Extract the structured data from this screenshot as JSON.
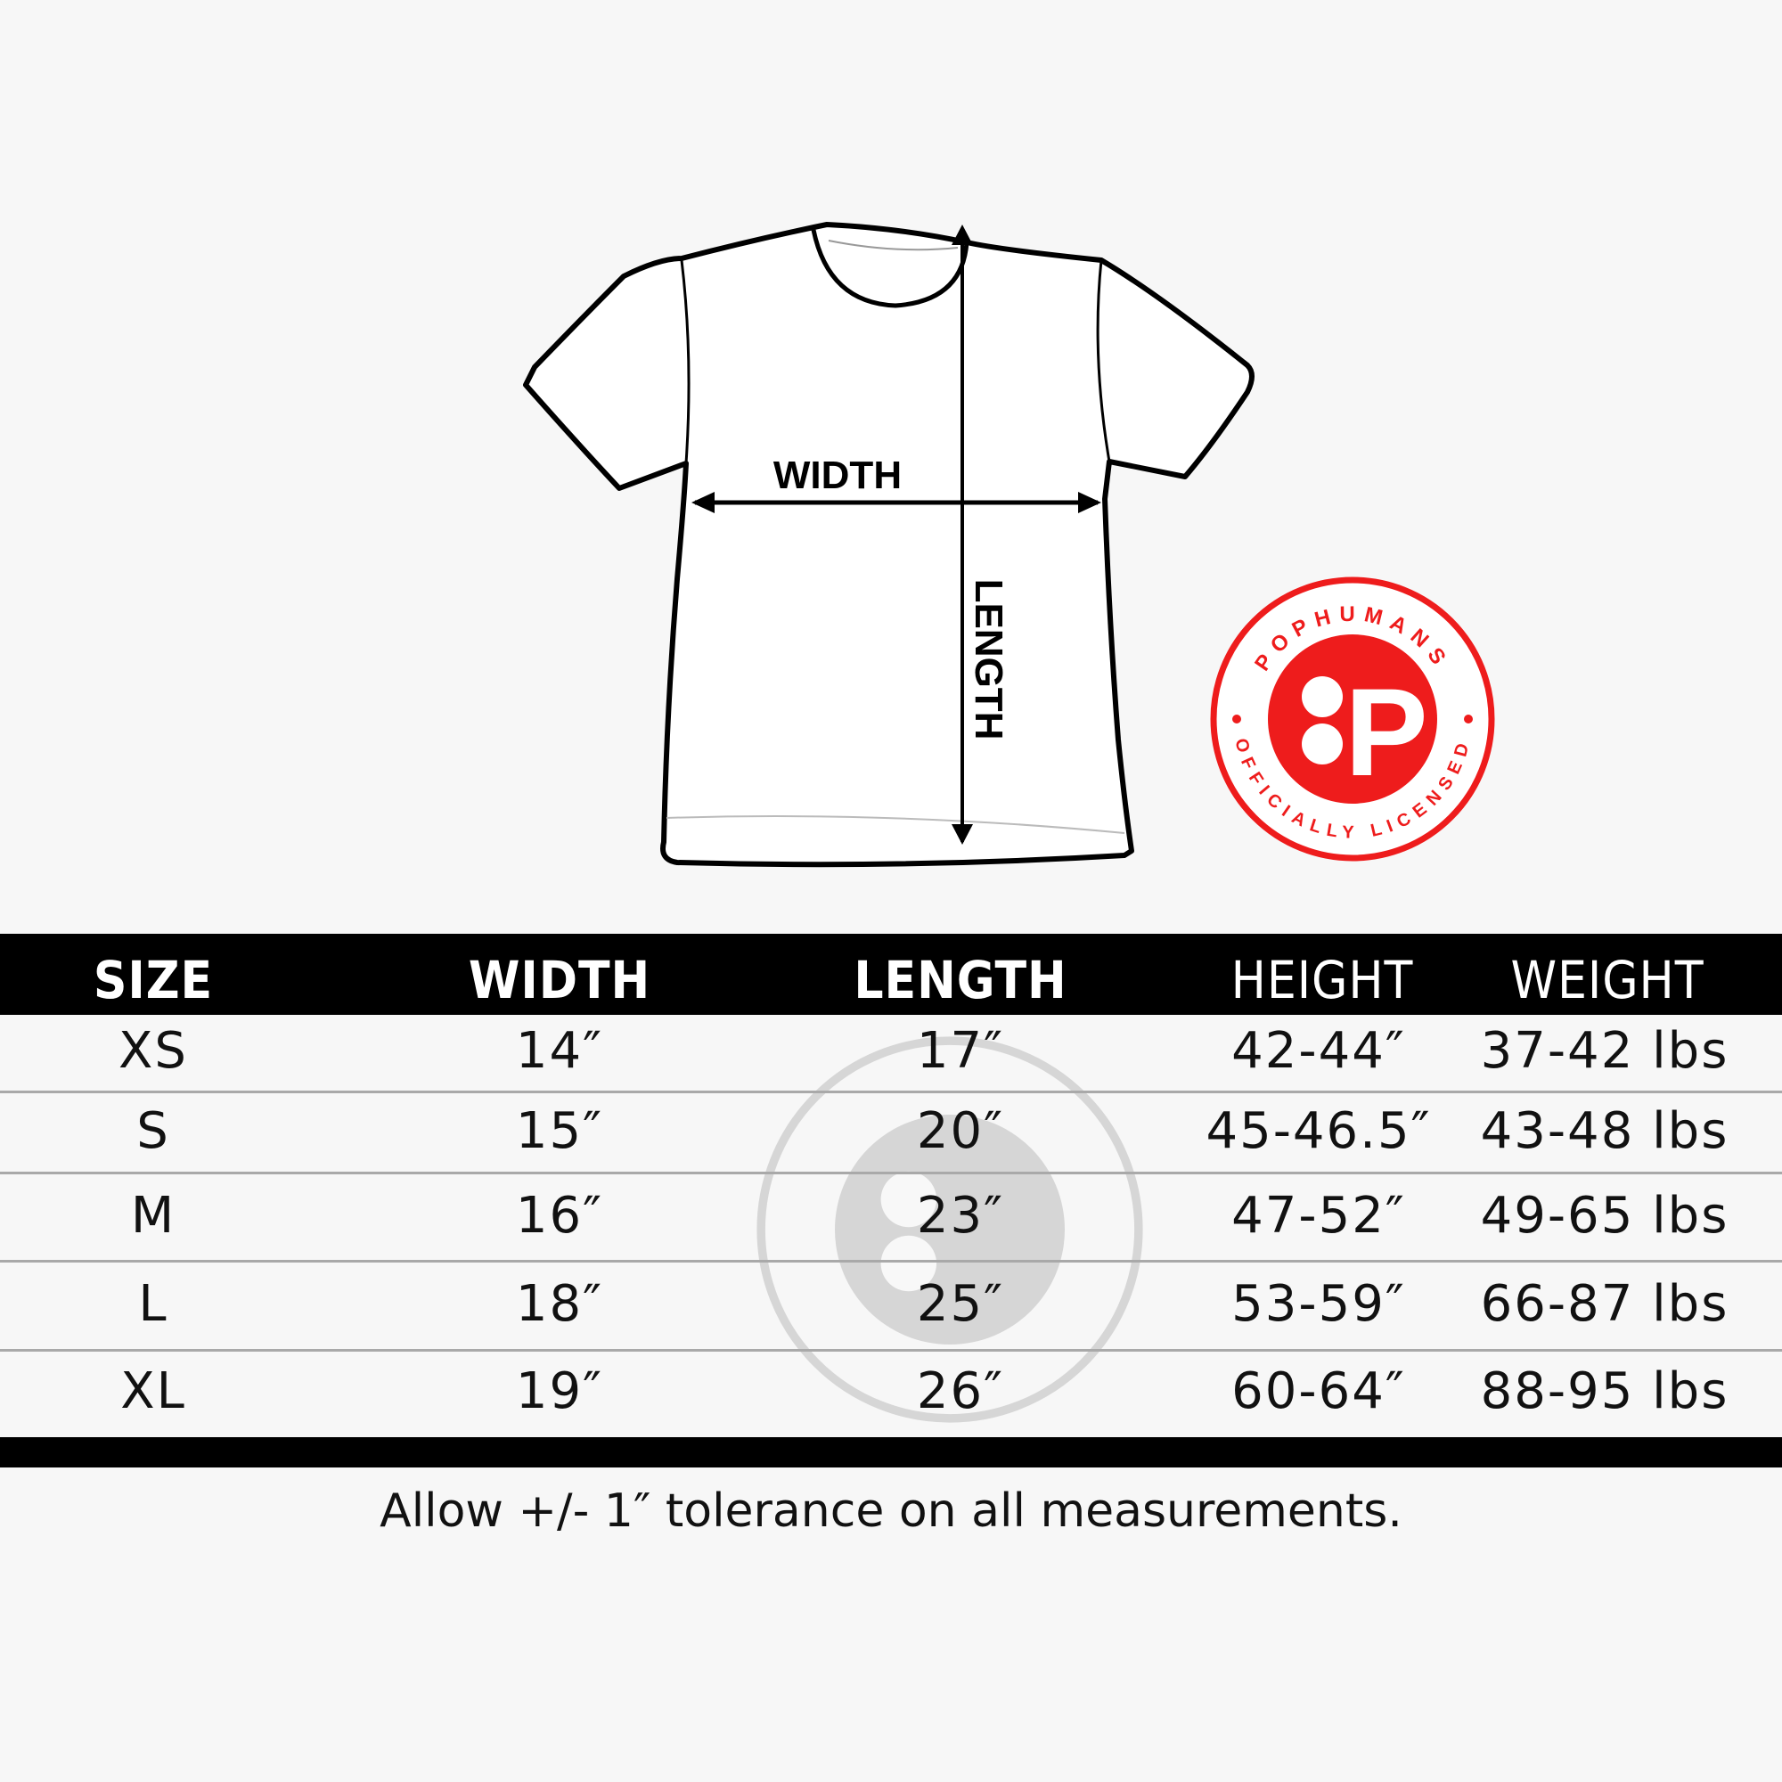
{
  "diagram": {
    "width_label": "WIDTH",
    "length_label": "LENGTH"
  },
  "badge": {
    "top_text": "POPHUMANS",
    "bottom_text": "OFFICIALLY LICENSED",
    "logo_letter": "P",
    "color": "#ee1c1c"
  },
  "table": {
    "headers": [
      "SIZE",
      "WIDTH",
      "LENGTH",
      "HEIGHT",
      "WEIGHT"
    ],
    "rows": [
      [
        "XS",
        "14″",
        "17″",
        "42-44″",
        "37-42 lbs"
      ],
      [
        "S",
        "15″",
        "20″",
        "45-46.5″",
        "43-48 lbs"
      ],
      [
        "M",
        "16″",
        "23″",
        "47-52″",
        "49-65 lbs"
      ],
      [
        "L",
        "18″",
        "25″",
        "53-59″",
        "66-87 lbs"
      ],
      [
        "XL",
        "19″",
        "26″",
        "60-64″",
        "88-95 lbs"
      ]
    ]
  },
  "note": "Allow +/- 1″ tolerance on all measurements."
}
